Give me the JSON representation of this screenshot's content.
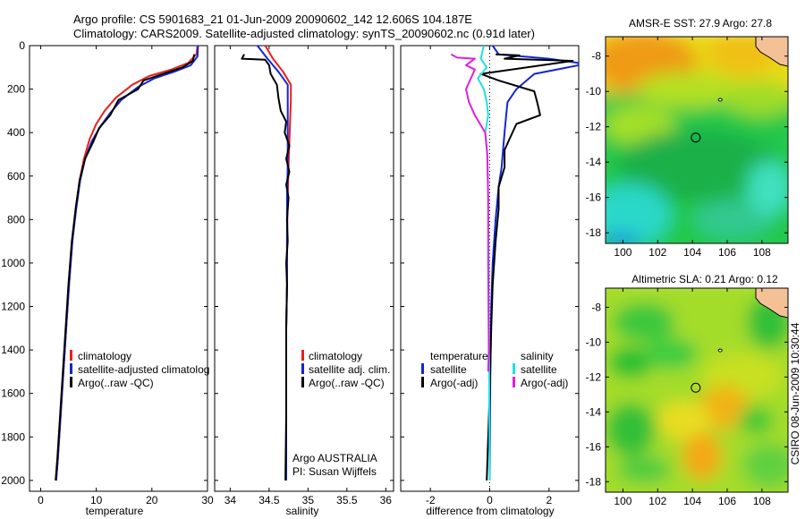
{
  "title_line1": "Argo profile: CS 5901683_21 01-Jun-2009 20090602_142 12.606S 104.187E",
  "title_line2": "Climatology: CARS2009. Satellite-adjusted climatology: synTS_20090602.nc (0.91d later)",
  "side_credit": "CSIRO 08-Jun-2009 10:30:44",
  "colors": {
    "climatology": "#e8201a",
    "satellite": "#1525d6",
    "argo": "#000000",
    "cyan": "#22e0e0",
    "magenta": "#e020e0"
  },
  "chart_data": [
    {
      "type": "line",
      "name": "temperature panel",
      "xlabel": "temperature",
      "ylabel": "",
      "xlim": [
        -2,
        30
      ],
      "ylim": [
        2050,
        0
      ],
      "xticks": [
        0,
        10,
        20,
        30
      ],
      "yticks": [
        0,
        200,
        400,
        600,
        800,
        1000,
        1200,
        1400,
        1600,
        1800,
        2000
      ],
      "legend": [
        "climatology",
        "satellite-adjusted climatolog",
        "Argo(..raw -QC)"
      ],
      "legend_placement": "lower-center",
      "series": [
        {
          "name": "climatology",
          "color": "#e8201a",
          "points": [
            [
              28.2,
              0
            ],
            [
              28.0,
              40
            ],
            [
              26.5,
              80
            ],
            [
              23.5,
              110
            ],
            [
              19.5,
              140
            ],
            [
              16.5,
              180
            ],
            [
              13.5,
              240
            ],
            [
              11.5,
              300
            ],
            [
              10.0,
              360
            ],
            [
              8.8,
              430
            ],
            [
              7.8,
              520
            ],
            [
              7.0,
              620
            ],
            [
              6.3,
              750
            ],
            [
              5.7,
              900
            ],
            [
              5.1,
              1100
            ],
            [
              4.6,
              1300
            ],
            [
              4.1,
              1500
            ],
            [
              3.6,
              1700
            ],
            [
              3.1,
              1900
            ],
            [
              2.8,
              2000
            ]
          ]
        },
        {
          "name": "satellite-adjusted climatology",
          "color": "#1525d6",
          "points": [
            [
              28.3,
              0
            ],
            [
              28.2,
              50
            ],
            [
              27.0,
              90
            ],
            [
              24.0,
              120
            ],
            [
              20.5,
              150
            ],
            [
              17.5,
              190
            ],
            [
              14.5,
              250
            ],
            [
              12.5,
              310
            ],
            [
              10.8,
              370
            ],
            [
              9.2,
              440
            ],
            [
              8.0,
              520
            ],
            [
              7.1,
              620
            ],
            [
              6.4,
              750
            ],
            [
              5.7,
              900
            ],
            [
              5.1,
              1100
            ],
            [
              4.6,
              1300
            ],
            [
              4.1,
              1500
            ],
            [
              3.6,
              1700
            ],
            [
              3.1,
              1900
            ],
            [
              2.8,
              2000
            ]
          ]
        },
        {
          "name": "Argo(..raw -QC)",
          "color": "#000000",
          "points": [
            [
              27.6,
              40
            ],
            [
              27.4,
              70
            ],
            [
              25.5,
              100
            ],
            [
              22.0,
              130
            ],
            [
              18.5,
              160
            ],
            [
              17.5,
              200
            ],
            [
              14.0,
              250
            ],
            [
              12.5,
              320
            ],
            [
              10.5,
              380
            ],
            [
              9.5,
              440
            ],
            [
              8.0,
              520
            ],
            [
              7.0,
              620
            ],
            [
              6.3,
              750
            ],
            [
              5.6,
              900
            ],
            [
              5.0,
              1100
            ],
            [
              4.5,
              1300
            ],
            [
              4.0,
              1500
            ],
            [
              3.5,
              1700
            ],
            [
              3.0,
              1900
            ],
            [
              2.7,
              2000
            ]
          ]
        }
      ]
    },
    {
      "type": "line",
      "name": "salinity panel",
      "xlabel": "salinity",
      "ylabel": "",
      "xlim": [
        33.8,
        36.1
      ],
      "ylim": [
        2050,
        0
      ],
      "xticks": [
        34,
        34.5,
        35,
        35.5,
        36
      ],
      "xticklabels": [
        "34",
        "34.5",
        "35",
        "35.5",
        "36"
      ],
      "legend": [
        "climatology",
        "satellite adj. clim.",
        "Argo(..raw -QC)"
      ],
      "annotation": [
        "Argo AUSTRALIA",
        "PI: Susan Wijffels"
      ],
      "series": [
        {
          "name": "climatology",
          "color": "#e8201a",
          "points": [
            [
              34.45,
              0
            ],
            [
              34.55,
              60
            ],
            [
              34.68,
              120
            ],
            [
              34.78,
              180
            ],
            [
              34.78,
              250
            ],
            [
              34.77,
              350
            ],
            [
              34.76,
              450
            ],
            [
              34.75,
              550
            ],
            [
              34.74,
              700
            ],
            [
              34.73,
              900
            ],
            [
              34.73,
              1100
            ],
            [
              34.72,
              1300
            ],
            [
              34.72,
              1500
            ],
            [
              34.72,
              1700
            ],
            [
              34.72,
              2000
            ]
          ]
        },
        {
          "name": "satellite adj. clim.",
          "color": "#1525d6",
          "points": [
            [
              34.35,
              0
            ],
            [
              34.48,
              60
            ],
            [
              34.62,
              120
            ],
            [
              34.74,
              180
            ],
            [
              34.74,
              250
            ],
            [
              34.74,
              350
            ],
            [
              34.74,
              450
            ],
            [
              34.74,
              550
            ],
            [
              34.73,
              700
            ],
            [
              34.73,
              900
            ],
            [
              34.73,
              1100
            ],
            [
              34.72,
              1300
            ],
            [
              34.72,
              1500
            ],
            [
              34.72,
              1700
            ],
            [
              34.72,
              2000
            ]
          ]
        },
        {
          "name": "Argo(..raw -QC)",
          "color": "#000000",
          "points": [
            [
              34.18,
              40
            ],
            [
              34.15,
              60
            ],
            [
              34.45,
              65
            ],
            [
              34.5,
              90
            ],
            [
              34.52,
              130
            ],
            [
              34.6,
              180
            ],
            [
              34.62,
              240
            ],
            [
              34.65,
              300
            ],
            [
              34.72,
              350
            ],
            [
              34.7,
              400
            ],
            [
              34.76,
              460
            ],
            [
              34.72,
              520
            ],
            [
              34.76,
              580
            ],
            [
              34.72,
              640
            ],
            [
              34.75,
              700
            ],
            [
              34.73,
              800
            ],
            [
              34.74,
              900
            ],
            [
              34.72,
              1000
            ],
            [
              34.73,
              1100
            ],
            [
              34.72,
              1300
            ],
            [
              34.72,
              1500
            ],
            [
              34.72,
              1700
            ],
            [
              34.71,
              2000
            ]
          ]
        }
      ]
    },
    {
      "type": "line",
      "name": "difference panel",
      "xlabel": "difference from climatology",
      "ylabel": "",
      "xlim": [
        -3,
        3
      ],
      "ylim": [
        2050,
        0
      ],
      "xticks": [
        -2,
        0,
        2
      ],
      "legend_headers": [
        "temperature",
        "salinity"
      ],
      "legend": [
        "satellite",
        "Argo(-adj)",
        "satellite",
        "Argo(-adj)"
      ],
      "series": [
        {
          "name": "temperature satellite",
          "color": "#1525d6",
          "points": [
            [
              0.1,
              0
            ],
            [
              0.3,
              40
            ],
            [
              2.0,
              60
            ],
            [
              3.0,
              80
            ],
            [
              3.0,
              90
            ],
            [
              1.5,
              130
            ],
            [
              0.9,
              200
            ],
            [
              0.6,
              260
            ],
            [
              0.55,
              330
            ],
            [
              0.5,
              400
            ],
            [
              0.45,
              480
            ],
            [
              0.4,
              560
            ],
            [
              0.3,
              650
            ],
            [
              0.2,
              800
            ],
            [
              0.1,
              1000
            ],
            [
              0.05,
              1200
            ],
            [
              0.02,
              1500
            ],
            [
              0.0,
              2000
            ]
          ]
        },
        {
          "name": "temperature Argo(-adj)",
          "color": "#000000",
          "points": [
            [
              0.2,
              40
            ],
            [
              1.0,
              45
            ],
            [
              0.5,
              60
            ],
            [
              2.8,
              70
            ],
            [
              1.5,
              95
            ],
            [
              -0.3,
              130
            ],
            [
              0.3,
              160
            ],
            [
              1.5,
              210
            ],
            [
              1.6,
              260
            ],
            [
              1.7,
              320
            ],
            [
              0.9,
              360
            ],
            [
              0.7,
              420
            ],
            [
              0.5,
              480
            ],
            [
              0.5,
              560
            ],
            [
              0.3,
              650
            ],
            [
              0.3,
              750
            ],
            [
              0.2,
              900
            ],
            [
              0.1,
              1100
            ],
            [
              0.05,
              1300
            ],
            [
              0.0,
              1600
            ],
            [
              -0.1,
              2000
            ]
          ]
        },
        {
          "name": "salinity satellite",
          "color": "#22e0e0",
          "points": [
            [
              -0.2,
              0
            ],
            [
              -0.3,
              60
            ],
            [
              -0.1,
              100
            ],
            [
              -0.4,
              150
            ],
            [
              -0.2,
              200
            ],
            [
              -0.1,
              260
            ],
            [
              -0.05,
              320
            ],
            [
              -0.15,
              400
            ],
            [
              -0.08,
              500
            ],
            [
              -0.05,
              700
            ],
            [
              -0.03,
              1000
            ],
            [
              -0.02,
              1400
            ],
            [
              0.0,
              2000
            ]
          ]
        },
        {
          "name": "salinity Argo(-adj)",
          "color": "#e020e0",
          "points": [
            [
              -1.3,
              40
            ],
            [
              -1.1,
              55
            ],
            [
              -0.5,
              60
            ],
            [
              -0.8,
              90
            ],
            [
              -0.5,
              110
            ],
            [
              -0.8,
              200
            ],
            [
              -0.7,
              260
            ],
            [
              -0.5,
              320
            ],
            [
              -0.15,
              400
            ],
            [
              -0.08,
              500
            ],
            [
              -0.05,
              700
            ],
            [
              -0.05,
              1000
            ],
            [
              -0.03,
              1400
            ],
            [
              -0.05,
              1500
            ]
          ]
        }
      ]
    },
    {
      "type": "heatmap",
      "name": "sst map",
      "title": "AMSR-E SST: 27.9 Argo: 27.8",
      "xlim": [
        99,
        109.5
      ],
      "ylim": [
        -18.6,
        -6.9
      ],
      "xticks": [
        100,
        102,
        104,
        106,
        108
      ],
      "yticks": [
        -8,
        -10,
        -12,
        -14,
        -16,
        -18
      ],
      "float_position": [
        104.19,
        -12.61
      ]
    },
    {
      "type": "heatmap",
      "name": "sla map",
      "title": "Altimetric SLA: 0.21 Argo: 0.12",
      "xlim": [
        99,
        109.5
      ],
      "ylim": [
        -18.6,
        -6.9
      ],
      "xticks": [
        100,
        102,
        104,
        106,
        108
      ],
      "yticks": [
        -8,
        -10,
        -12,
        -14,
        -16,
        -18
      ],
      "float_position": [
        104.19,
        -12.61
      ]
    }
  ]
}
